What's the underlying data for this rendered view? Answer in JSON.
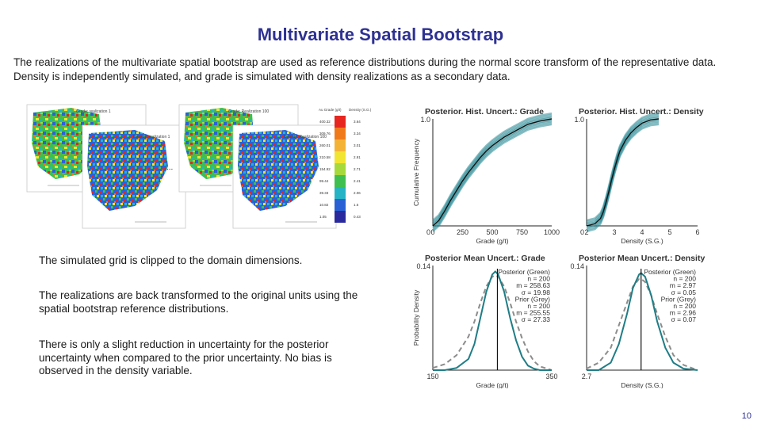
{
  "slide": {
    "title": "Multivariate Spatial Bootstrap",
    "intro": "The realizations of the multivariate spatial bootstrap are used as reference distributions during the normal score transform of the representative data. Density is independently simulated, and grade is simulated with density realizations as a secondary data.",
    "bullets": [
      "The simulated grid is clipped to the domain dimensions.",
      "The realizations are back transformed to the original units using the spatial bootstrap reference distributions.",
      "There is only a slight reduction in uncertainty for the posterior uncertainty when compared to the prior uncertainty. No bias is observed in the density variable."
    ],
    "page_number": "10"
  },
  "maps": {
    "labels": {
      "grade1": "Grade: realization 1",
      "density1": "Density: realization 1",
      "grade100": "Grade: Realization 100",
      "density100": "Density: Realization 100"
    },
    "ellipsis": "...",
    "legend": {
      "header_grade": "Au Grade (g/t)",
      "header_density": "Density (S.G.)",
      "grade_values": [
        "400.32",
        "309.76",
        "260.01",
        "210.58",
        "154.92",
        "99.44",
        "39.33",
        "10.82",
        "1.05"
      ],
      "density_values": [
        "3.64",
        "3.34",
        "3.01",
        "2.91",
        "2.71",
        "2.41",
        "2.06",
        "1.5",
        "0.43"
      ],
      "colors": [
        "#e6261f",
        "#f07a1a",
        "#f5b335",
        "#f2e531",
        "#a6d93b",
        "#3fbf4f",
        "#25b3c6",
        "#2a62d6",
        "#2a2a9e"
      ]
    }
  },
  "chart_data": [
    {
      "type": "line",
      "title": "Posterior. Hist. Uncert.: Grade",
      "xlabel": "Grade (g/t)",
      "ylabel": "Cumulative Frequency",
      "xlim": [
        0,
        1000
      ],
      "ylim": [
        0,
        1.0
      ],
      "xticks": [
        "0",
        "250",
        "500",
        "750",
        "1000"
      ],
      "yticks": [
        "0",
        "1.0"
      ],
      "x": [
        0,
        50,
        100,
        150,
        200,
        250,
        300,
        350,
        400,
        450,
        500,
        550,
        600,
        650,
        700,
        750,
        800,
        900,
        1000
      ],
      "series": [
        {
          "values": [
            0.0,
            0.05,
            0.14,
            0.24,
            0.33,
            0.42,
            0.5,
            0.57,
            0.64,
            0.7,
            0.75,
            0.79,
            0.83,
            0.86,
            0.89,
            0.92,
            0.95,
            0.98,
            1.0
          ]
        }
      ],
      "colors": {
        "median": "#111111",
        "band": "#2a8a96"
      }
    },
    {
      "type": "line",
      "title": "Posterior. Hist. Uncert.: Density",
      "xlabel": "Density (S.G.)",
      "xlim": [
        2,
        6
      ],
      "ylim": [
        0,
        1.0
      ],
      "xticks": [
        "2",
        "3",
        "4",
        "5",
        "6"
      ],
      "yticks": [
        "0",
        "1.0"
      ],
      "x": [
        2.0,
        2.3,
        2.5,
        2.6,
        2.7,
        2.8,
        2.9,
        3.0,
        3.1,
        3.2,
        3.4,
        3.6,
        3.8,
        4.0,
        4.3,
        4.6
      ],
      "series": [
        {
          "values": [
            0.0,
            0.02,
            0.07,
            0.13,
            0.22,
            0.32,
            0.43,
            0.53,
            0.62,
            0.7,
            0.8,
            0.87,
            0.92,
            0.96,
            0.99,
            1.0
          ]
        }
      ],
      "colors": {
        "median": "#111111",
        "band": "#2a8a96"
      }
    },
    {
      "type": "line",
      "title": "Posterior Mean Uncert.: Grade",
      "xlabel": "Grade (g/t)",
      "ylabel": "Probability Density",
      "xlim": [
        150,
        350
      ],
      "ylim": [
        0,
        0.14
      ],
      "xticks": [
        "150",
        "350"
      ],
      "yticks": [
        "0.14"
      ],
      "annotations": {
        "posterior_title": "Posterior (Green)",
        "posterior_n": "n = 200",
        "posterior_m": "m = 258.63",
        "posterior_s": "σ = 19.98",
        "prior_title": "Prior (Grey)",
        "prior_n": "n = 200",
        "prior_m": "m = 255.55",
        "prior_s": "σ = 27.33"
      },
      "x": [
        150,
        170,
        190,
        210,
        220,
        230,
        240,
        250,
        255,
        260,
        270,
        280,
        290,
        300,
        310,
        320,
        330,
        350
      ],
      "series": [
        {
          "name": "Posterior (Green)",
          "values": [
            0.0,
            0.0,
            0.003,
            0.015,
            0.035,
            0.07,
            0.105,
            0.128,
            0.132,
            0.128,
            0.105,
            0.07,
            0.04,
            0.018,
            0.006,
            0.002,
            0.0,
            0.0
          ]
        },
        {
          "name": "Prior (Grey)",
          "values": [
            0.003,
            0.008,
            0.02,
            0.045,
            0.065,
            0.09,
            0.112,
            0.125,
            0.127,
            0.125,
            0.112,
            0.09,
            0.065,
            0.043,
            0.025,
            0.012,
            0.005,
            0.0
          ]
        }
      ],
      "vline": 258.63,
      "colors": {
        "posterior": "#1f7d86",
        "prior": "#8c8c8c",
        "vline": "#111111"
      }
    },
    {
      "type": "line",
      "title": "Posterior Mean Uncert.: Density",
      "xlabel": "Density (S.G.)",
      "xlim": [
        2.7,
        3.25
      ],
      "ylim": [
        0,
        0.14
      ],
      "xticks": [
        "2.7"
      ],
      "yticks": [
        "0.14"
      ],
      "annotations": {
        "posterior_title": "Posterior (Green)",
        "posterior_n": "n = 200",
        "posterior_m": "m = 2.97",
        "posterior_s": "σ = 0.05",
        "prior_title": "Prior (Grey)",
        "prior_n": "n = 200",
        "prior_m": "m = 2.96",
        "prior_s": "σ = 0.07"
      },
      "x": [
        2.7,
        2.76,
        2.82,
        2.86,
        2.9,
        2.93,
        2.96,
        2.97,
        2.99,
        3.02,
        3.05,
        3.09,
        3.13,
        3.18,
        3.25
      ],
      "series": [
        {
          "name": "Posterior (Green)",
          "values": [
            0.0,
            0.0,
            0.01,
            0.035,
            0.075,
            0.11,
            0.128,
            0.13,
            0.125,
            0.1,
            0.065,
            0.03,
            0.01,
            0.002,
            0.0
          ]
        },
        {
          "name": "Prior (Grey)",
          "values": [
            0.002,
            0.01,
            0.03,
            0.06,
            0.09,
            0.112,
            0.122,
            0.122,
            0.118,
            0.1,
            0.075,
            0.045,
            0.02,
            0.007,
            0.0
          ]
        }
      ],
      "vline": 2.97,
      "colors": {
        "posterior": "#1f7d86",
        "prior": "#8c8c8c",
        "vline": "#111111"
      }
    }
  ]
}
